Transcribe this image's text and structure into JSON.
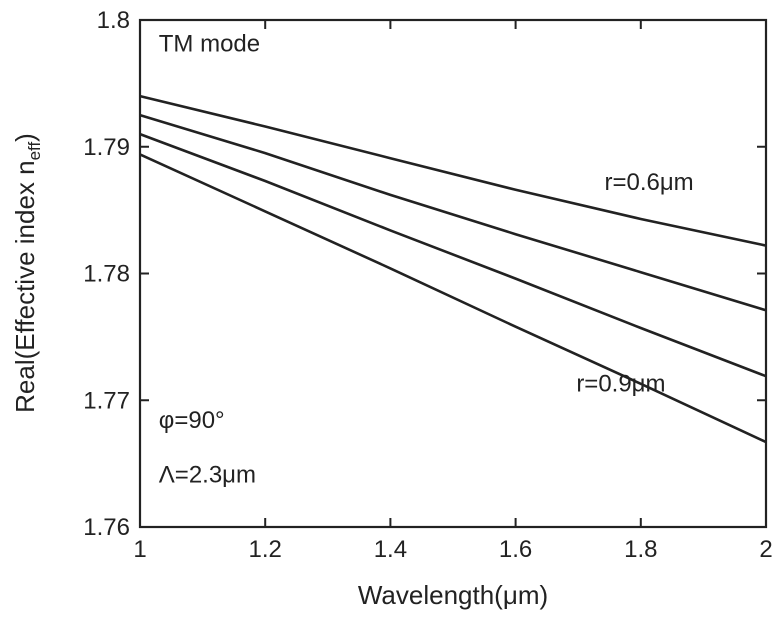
{
  "chart_data": {
    "type": "line",
    "title": "",
    "xlabel": "Wavelength(μm)",
    "ylabel_parts": {
      "main": "Real(Effective index n",
      "sub": "eff",
      "close": ")"
    },
    "xlim": [
      1,
      2
    ],
    "ylim": [
      1.76,
      1.8
    ],
    "x_ticks": [
      1,
      1.2,
      1.4,
      1.6,
      1.8,
      2
    ],
    "x_tick_labels": [
      "1",
      "1.2",
      "1.4",
      "1.6",
      "1.8",
      "2"
    ],
    "y_ticks": [
      1.76,
      1.77,
      1.78,
      1.79,
      1.8
    ],
    "y_tick_labels": [
      "1.76",
      "1.77",
      "1.78",
      "1.79",
      "1.8"
    ],
    "grid": false,
    "series": [
      {
        "x": [
          1,
          1.2,
          1.4,
          1.6,
          1.8,
          2
        ],
        "values": [
          1.794,
          1.7916,
          1.7891,
          1.7866,
          1.7843,
          1.7822
        ]
      },
      {
        "x": [
          1,
          1.2,
          1.4,
          1.6,
          1.8,
          2
        ],
        "values": [
          1.7925,
          1.7895,
          1.7862,
          1.7831,
          1.7801,
          1.7771
        ]
      },
      {
        "x": [
          1,
          1.2,
          1.4,
          1.6,
          1.8,
          2
        ],
        "values": [
          1.791,
          1.7873,
          1.7834,
          1.7796,
          1.7757,
          1.7719
        ]
      },
      {
        "x": [
          1,
          1.2,
          1.4,
          1.6,
          1.8,
          2
        ],
        "values": [
          1.7894,
          1.7849,
          1.7804,
          1.7758,
          1.7713,
          1.7667
        ]
      }
    ],
    "annotations": [
      {
        "id": "mode",
        "text": "TM mode",
        "x": 1.03,
        "y": 1.7975
      },
      {
        "id": "r-top",
        "text": "r=0.6μm",
        "x": 1.742,
        "y": 1.7866
      },
      {
        "id": "r-bottom",
        "text": "r=0.9μm",
        "x": 1.697,
        "y": 1.7707
      },
      {
        "id": "phi",
        "text": "φ=90°",
        "x": 1.03,
        "y": 1.7678
      },
      {
        "id": "lambda",
        "text": "Λ=2.3μm",
        "x": 1.03,
        "y": 1.7635
      }
    ]
  }
}
